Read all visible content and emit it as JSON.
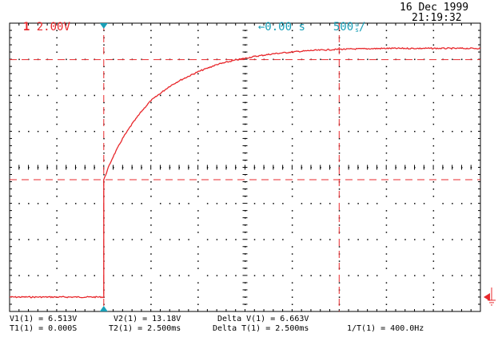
{
  "header": {
    "channel_number": "1",
    "channel_scale": "2.00V",
    "time_offset": "0.00 s",
    "timebase": "500",
    "timebase_unit_top": "u",
    "timebase_unit_bottom": "s",
    "timebase_unit_suffix": "/",
    "date": "16 Dec 1999",
    "time": "21:19:32"
  },
  "measurements": {
    "v1": "V1(1) = 6.513V",
    "v2": "V2(1) = 13.18V",
    "delta_v": "Delta V(1) = 6.663V",
    "t1": "T1(1) = 0.000S",
    "t2": "T2(1) = 2.500ms",
    "delta_t": "Delta T(1) = 2.500ms",
    "inv_delta_t": "1/T(1) = 400.0Hz"
  },
  "colors": {
    "trace": "#e8282c",
    "marker": "#1aa0b8",
    "grid": "#000000"
  },
  "icons": {
    "trigger_marker": "teal-triangle-icon",
    "time_reference": "left-arrow-icon",
    "ground_reference": "ground-symbol-icon"
  },
  "chart_data": {
    "type": "line",
    "title": "",
    "xlabel": "",
    "ylabel": "",
    "x_unit": "ms",
    "y_unit": "V",
    "x_divisions": 10,
    "y_divisions": 8,
    "volts_per_div": 2.0,
    "ms_per_div": 0.5,
    "xlim": [
      -1.0,
      4.0
    ],
    "ylim": [
      -0.8,
      15.2
    ],
    "grid": true,
    "series": [
      {
        "description": "step response charging curve",
        "x": [
          -1.0,
          -0.5,
          0.0,
          0.0,
          0.05,
          0.1,
          0.2,
          0.3,
          0.4,
          0.5,
          0.6,
          0.7,
          0.8,
          1.0,
          1.2,
          1.4,
          1.6,
          1.8,
          2.0,
          2.2,
          2.5,
          3.0,
          3.5,
          4.0
        ],
        "y": [
          0.0,
          0.0,
          0.0,
          6.5,
          7.2,
          7.8,
          8.8,
          9.6,
          10.3,
          10.9,
          11.3,
          11.7,
          12.0,
          12.5,
          12.9,
          13.15,
          13.35,
          13.5,
          13.6,
          13.68,
          13.75,
          13.8,
          13.8,
          13.8
        ]
      }
    ],
    "cursors": {
      "v1": 6.513,
      "v2": 13.18,
      "t1": 0.0,
      "t2": 2.5
    }
  }
}
